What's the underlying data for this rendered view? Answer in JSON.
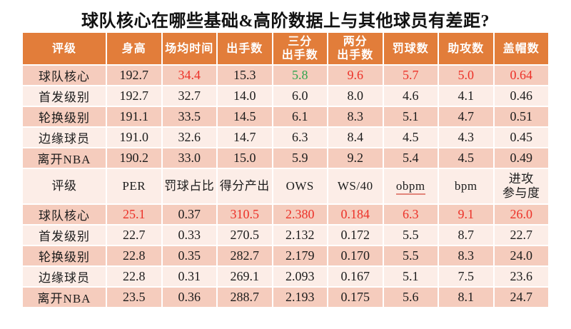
{
  "title": "球队核心在哪些基础&高阶数据上与其他球员有差距?",
  "colors": {
    "header_bg": "#E27D3A",
    "header_text": "#FFFFFF",
    "row_dark_bg": "#F5CCBD",
    "row_light_bg": "#FCEDE7",
    "body_text": "#1C1C1C",
    "highlight_red": "#EC3128",
    "highlight_green": "#2FA44D"
  },
  "chart_data": [
    {
      "type": "table",
      "headers": [
        "评级",
        "身高",
        "场均时间",
        "出手数",
        "三分\n出手数",
        "两分\n出手数",
        "罚球数",
        "助攻数",
        "盖帽数"
      ],
      "rows": [
        {
          "label": "球队核心",
          "values": [
            "192.7",
            "34.4",
            "15.3",
            "5.8",
            "9.6",
            "5.7",
            "5.0",
            "0.64"
          ],
          "value_colors": [
            null,
            "red",
            null,
            "green",
            "red",
            "red",
            "red",
            "red"
          ]
        },
        {
          "label": "首发级别",
          "values": [
            "192.7",
            "32.7",
            "14.0",
            "6.0",
            "8.0",
            "4.6",
            "4.1",
            "0.46"
          ],
          "value_colors": [
            null,
            null,
            null,
            null,
            null,
            null,
            null,
            null
          ]
        },
        {
          "label": "轮换级别",
          "values": [
            "191.1",
            "33.5",
            "14.5",
            "6.1",
            "8.3",
            "5.1",
            "4.7",
            "0.51"
          ],
          "value_colors": [
            null,
            null,
            null,
            null,
            null,
            null,
            null,
            null
          ]
        },
        {
          "label": "边缘球员",
          "values": [
            "191.0",
            "32.6",
            "14.7",
            "6.3",
            "8.4",
            "4.5",
            "4.3",
            "0.45"
          ],
          "value_colors": [
            null,
            null,
            null,
            null,
            null,
            null,
            null,
            null
          ]
        },
        {
          "label": "离开NBA",
          "values": [
            "190.2",
            "33.0",
            "15.0",
            "5.9",
            "9.2",
            "5.4",
            "4.5",
            "0.49"
          ],
          "value_colors": [
            null,
            null,
            null,
            null,
            null,
            null,
            null,
            null
          ]
        }
      ]
    },
    {
      "type": "table",
      "headers": [
        "评级",
        "PER",
        "罚球占比",
        "得分产出",
        "OWS",
        "WS/40",
        "obpm",
        "bpm",
        "进攻\n参与度"
      ],
      "spellcheck_underline_header": "obpm",
      "rows": [
        {
          "label": "球队核心",
          "values": [
            "25.1",
            "0.37",
            "310.5",
            "2.380",
            "0.184",
            "6.3",
            "9.1",
            "26.0"
          ],
          "value_colors": [
            "red",
            null,
            "red",
            "red",
            "red",
            "red",
            "red",
            "red"
          ]
        },
        {
          "label": "首发级别",
          "values": [
            "22.7",
            "0.33",
            "270.5",
            "2.132",
            "0.172",
            "5.5",
            "8.7",
            "22.7"
          ],
          "value_colors": [
            null,
            null,
            null,
            null,
            null,
            null,
            null,
            null
          ]
        },
        {
          "label": "轮换级别",
          "values": [
            "22.8",
            "0.35",
            "282.7",
            "2.179",
            "0.170",
            "5.5",
            "8.3",
            "24.0"
          ],
          "value_colors": [
            null,
            null,
            null,
            null,
            null,
            null,
            null,
            null
          ]
        },
        {
          "label": "边缘球员",
          "values": [
            "22.8",
            "0.31",
            "269.1",
            "2.093",
            "0.167",
            "5.1",
            "7.5",
            "23.6"
          ],
          "value_colors": [
            null,
            null,
            null,
            null,
            null,
            null,
            null,
            null
          ]
        },
        {
          "label": "离开NBA",
          "values": [
            "23.5",
            "0.36",
            "288.7",
            "2.193",
            "0.175",
            "5.6",
            "8.1",
            "24.7"
          ],
          "value_colors": [
            null,
            null,
            null,
            null,
            null,
            null,
            null,
            null
          ]
        }
      ]
    }
  ]
}
